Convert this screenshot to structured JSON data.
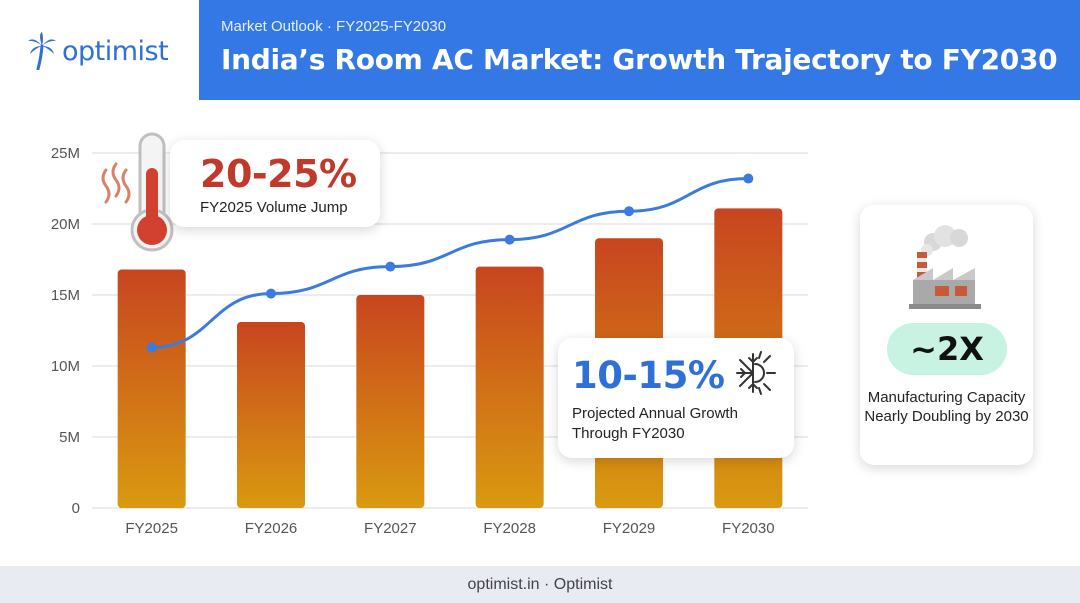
{
  "brand": {
    "name": "optimist",
    "color": "#2f6fd8"
  },
  "header": {
    "subtitle": "Market Outlook · FY2025-FY2030",
    "title": "India’s Room AC Market: Growth Trajectory to FY2030",
    "bg_color": "#3478e6"
  },
  "chart_data": {
    "type": "bar",
    "categories": [
      "FY2025",
      "FY2026",
      "FY2027",
      "FY2028",
      "FY2029",
      "FY2030"
    ],
    "series": [
      {
        "type": "bar",
        "values": [
          16.8,
          13.1,
          15.0,
          17.0,
          19.0,
          21.1
        ]
      },
      {
        "type": "line",
        "values": [
          11.3,
          15.1,
          17.0,
          18.9,
          20.9,
          23.2
        ]
      }
    ],
    "ylim": [
      0,
      25
    ],
    "yticks": [
      0,
      5,
      10,
      15,
      20,
      25
    ],
    "ytick_labels": [
      "0",
      "5M",
      "10M",
      "15M",
      "20M",
      "25M"
    ],
    "grid": true,
    "colors": {
      "bar_top": "#c8451f",
      "bar_bottom": "#d99a10",
      "line": "#3b7be0"
    }
  },
  "callouts": {
    "heat": {
      "value": "20-25%",
      "label": "FY2025 Volume Jump",
      "icon": "thermometer-icon"
    },
    "growth": {
      "value": "10-15%",
      "label": "Projected Annual Growth Through FY2030",
      "icon": "snowflake-sun-icon"
    },
    "capacity": {
      "value": "~2X",
      "label": "Manufacturing Capacity Nearly Doubling by 2030",
      "icon": "factory-icon"
    }
  },
  "footer": {
    "text": "optimist.in · Optimist"
  }
}
